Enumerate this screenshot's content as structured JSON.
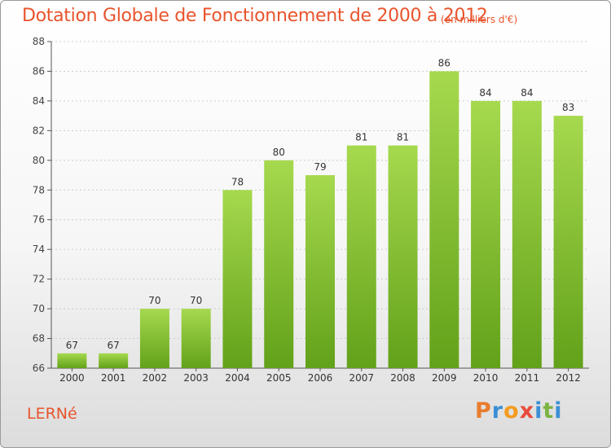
{
  "title": "Dotation Globale de Fonctionnement de 2000 à 2012",
  "unit_note": "(en milliers d'€)",
  "commune": "LERNé",
  "logo": {
    "text": "Proxiti",
    "letter_colors": [
      "#e87c2e",
      "#3b8fd6",
      "#f39c1f",
      "#e84c3d",
      "#3b8fd6",
      "#7cb342",
      "#3b8fd6"
    ]
  },
  "colors": {
    "title": "#e8542c",
    "bar_light": "#a6d94e",
    "bar_dark": "#62a11a",
    "axis": "#555555",
    "grid": "#cccccc"
  },
  "chart_data": {
    "type": "bar",
    "title": "Dotation Globale de Fonctionnement de 2000 à 2012",
    "categories": [
      "2000",
      "2001",
      "2002",
      "2003",
      "2004",
      "2005",
      "2006",
      "2007",
      "2008",
      "2009",
      "2010",
      "2011",
      "2012"
    ],
    "values": [
      67,
      67,
      70,
      70,
      78,
      80,
      79,
      81,
      81,
      86,
      84,
      84,
      83
    ],
    "ylim": [
      66,
      88
    ],
    "yticks": [
      66,
      68,
      70,
      72,
      74,
      76,
      78,
      80,
      82,
      84,
      86,
      88
    ],
    "grid": true,
    "legend": "none"
  }
}
